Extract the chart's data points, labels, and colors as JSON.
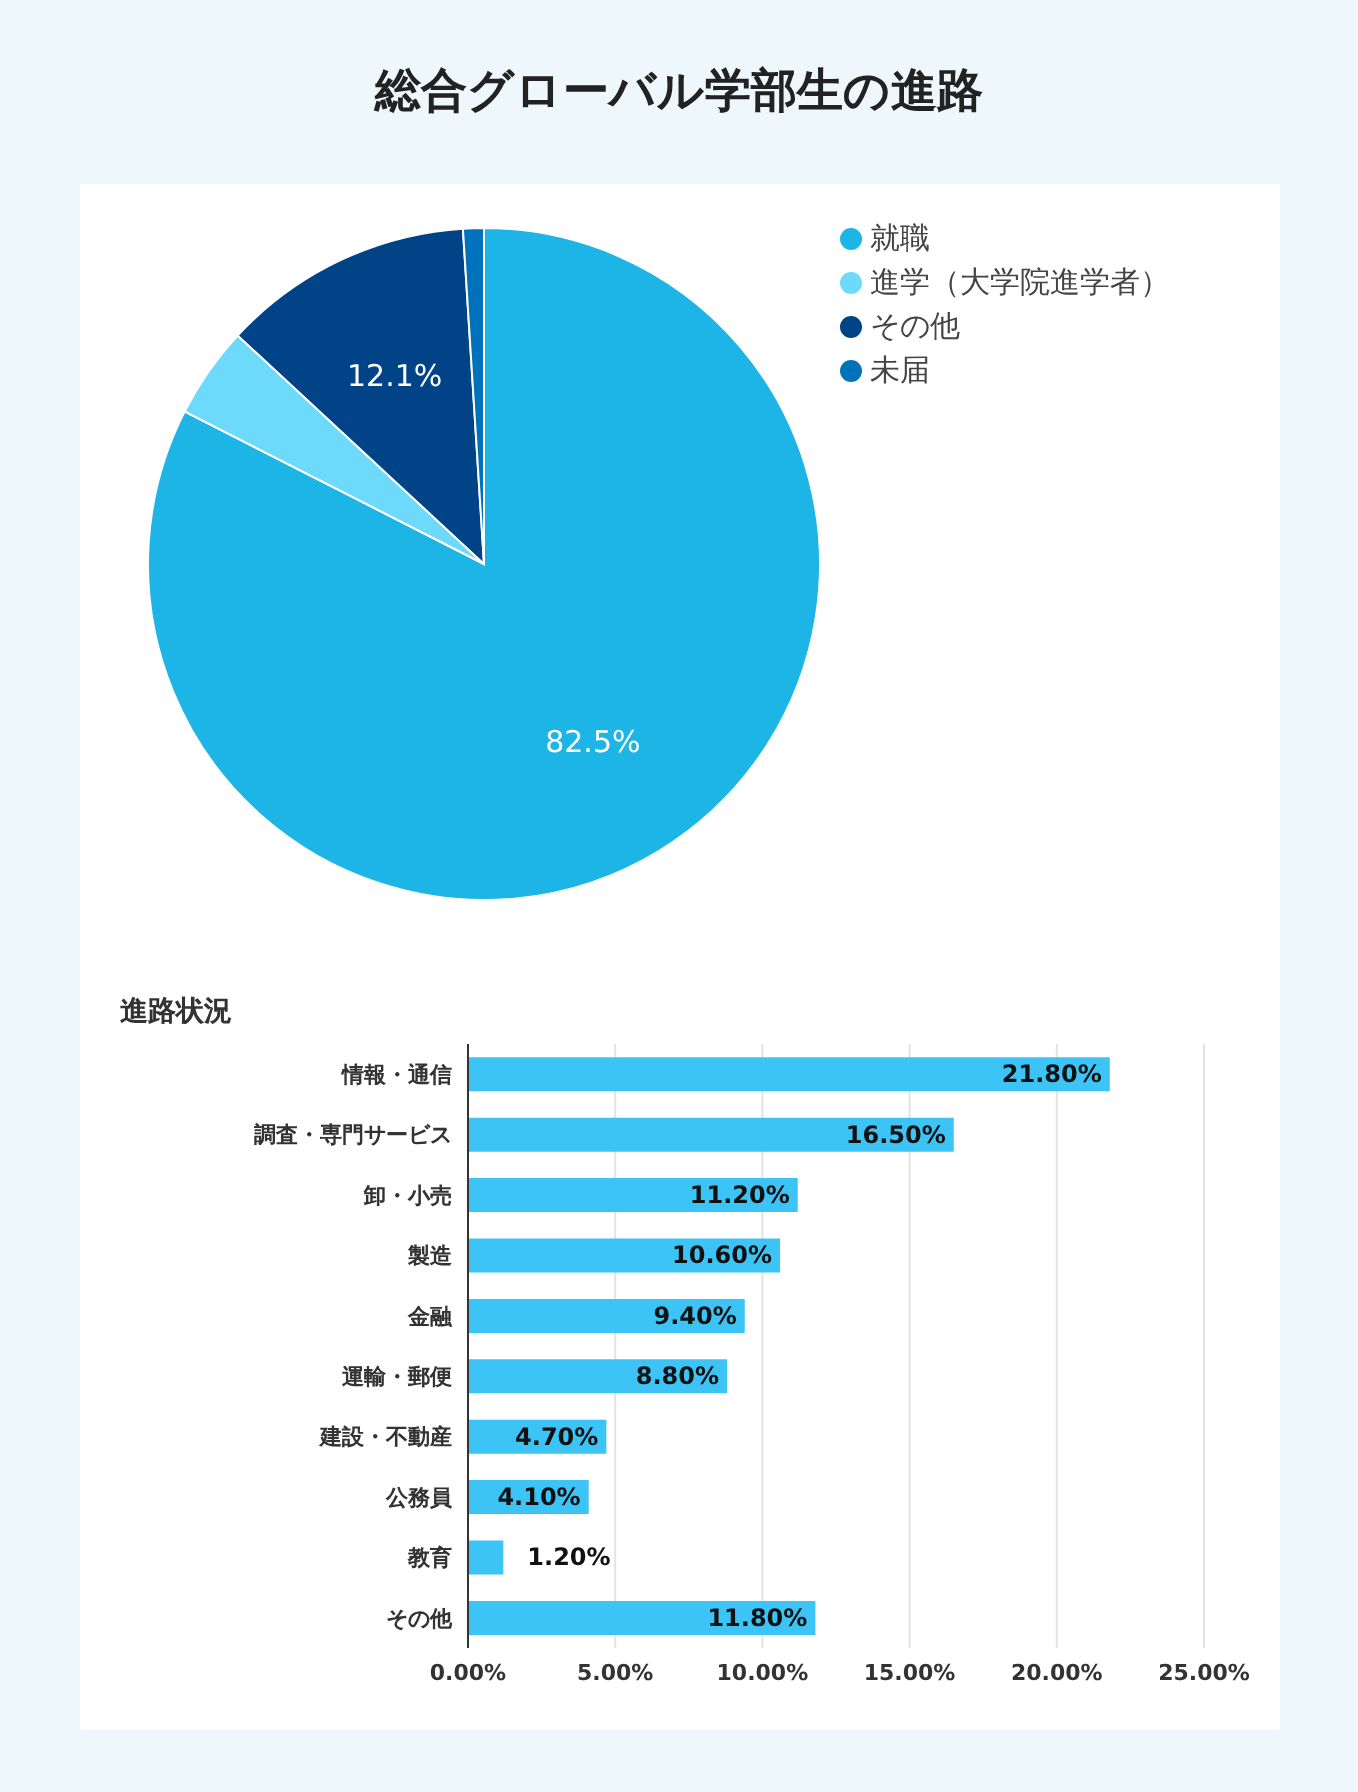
{
  "chart_data": [
    {
      "type": "pie",
      "title": "総合グローバル学部生の進路",
      "categories": [
        "就職",
        "進学（大学院進学者）",
        "その他",
        "未届"
      ],
      "values": [
        82.5,
        4.4,
        12.1,
        1.0
      ],
      "colors": [
        "#1db4e6",
        "#6dd9fb",
        "#004386",
        "#0072bc"
      ],
      "value_labels": [
        "82.5%",
        null,
        "12.1%",
        null
      ],
      "legend": "top right"
    },
    {
      "type": "bar",
      "orientation": "horizontal",
      "title": "進路状況",
      "categories": [
        "情報・通信",
        "調査・専門サービス",
        "卸・小売",
        "製造",
        "金融",
        "運輸・郵便",
        "建設・不動産",
        "公務員",
        "教育",
        "その他"
      ],
      "values": [
        21.8,
        16.5,
        11.2,
        10.6,
        9.4,
        8.8,
        4.7,
        4.1,
        1.2,
        11.8
      ],
      "color": "#3cc4f7",
      "value_labels": [
        "21.80%",
        "16.50%",
        "11.20%",
        "10.60%",
        "9.40%",
        "8.80%",
        "4.70%",
        "4.10%",
        "1.20%",
        "11.80%"
      ],
      "xlim": [
        0,
        25
      ],
      "xticks": [
        {
          "value": 0,
          "label": "0.00%"
        },
        {
          "value": 5,
          "label": "5.00%"
        },
        {
          "value": 10,
          "label": "10.00%"
        },
        {
          "value": 15,
          "label": "15.00%"
        },
        {
          "value": 20,
          "label": "20.00%"
        },
        {
          "value": 25,
          "label": "25.00%"
        }
      ],
      "grid": "x"
    }
  ]
}
